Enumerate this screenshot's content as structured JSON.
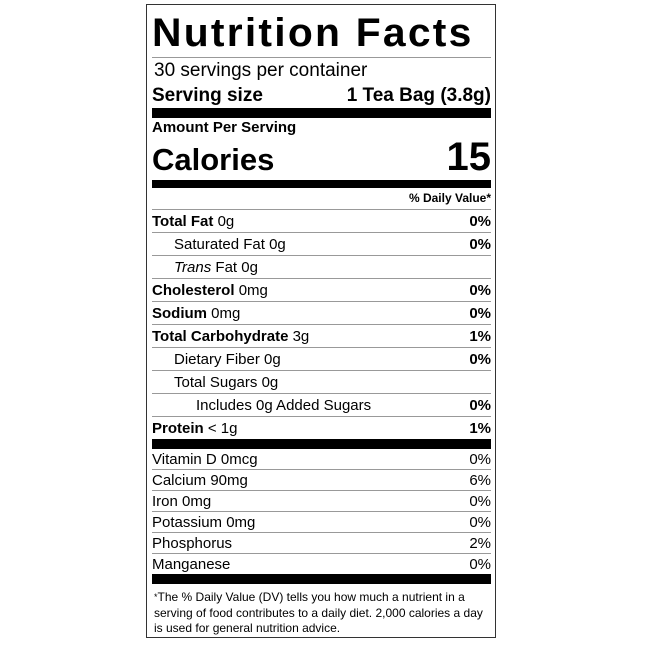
{
  "title": "Nutrition Facts",
  "servings_per_container": "30 servings per container",
  "serving_size": {
    "label": "Serving size",
    "value": "1 Tea Bag (3.8g)"
  },
  "amount_per_serving": "Amount Per Serving",
  "calories": {
    "label": "Calories",
    "value": "15"
  },
  "daily_value_header": "% Daily Value*",
  "nutrients": [
    {
      "name": "Total Fat",
      "amount": "0g",
      "dv": "0%"
    },
    {
      "name": "Saturated Fat",
      "amount": "0g",
      "dv": "0%"
    },
    {
      "name": "Trans",
      "suffix": "Fat 0g",
      "dv": ""
    },
    {
      "name": "Cholesterol",
      "amount": "0mg",
      "dv": "0%"
    },
    {
      "name": "Sodium",
      "amount": "0mg",
      "dv": "0%"
    },
    {
      "name": "Total Carbohydrate",
      "amount": "3g",
      "dv": "1%"
    },
    {
      "name": "Dietary Fiber",
      "amount": "0g",
      "dv": "0%"
    },
    {
      "name": "Total Sugars",
      "amount": "0g",
      "dv": ""
    },
    {
      "name": "Includes 0g Added Sugars",
      "dv": "0%"
    },
    {
      "name": "Protein",
      "amount": "< 1g",
      "dv": "1%"
    }
  ],
  "vitamins": [
    {
      "label": "Vitamin D 0mcg",
      "dv": "0%"
    },
    {
      "label": "Calcium 90mg",
      "dv": "6%"
    },
    {
      "label": "Iron 0mg",
      "dv": "0%"
    },
    {
      "label": "Potassium 0mg",
      "dv": "0%"
    },
    {
      "label": "Phosphorus",
      "dv": "2%"
    },
    {
      "label": "Manganese",
      "dv": "0%"
    }
  ],
  "footnote": {
    "star": "*",
    "text": "The % Daily Value (DV) tells you how much a nutrient in a serving of food contributes to a daily diet. 2,000 calories a day is used for general nutrition advice."
  }
}
